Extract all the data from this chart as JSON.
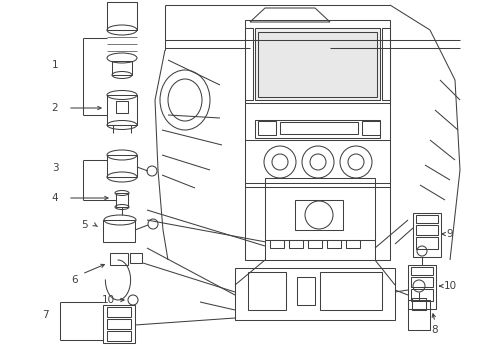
{
  "bg_color": "#ffffff",
  "line_color": "#404040",
  "fig_width": 4.89,
  "fig_height": 3.6,
  "dpi": 100,
  "label_fontsize": 7.5,
  "lw": 0.75
}
